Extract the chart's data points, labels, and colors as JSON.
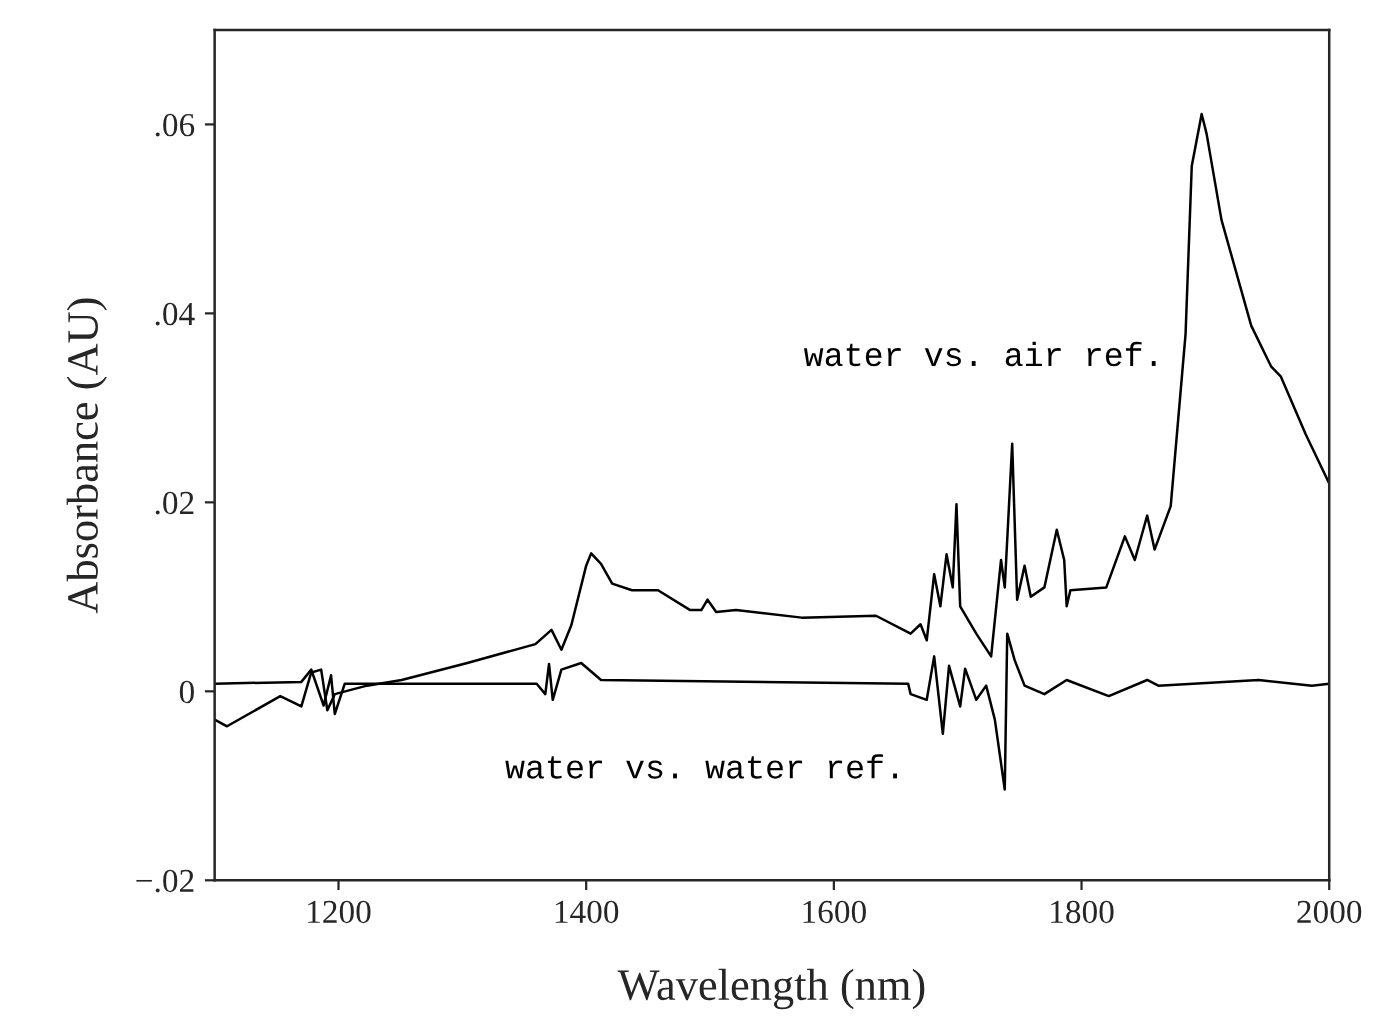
{
  "chart_data": {
    "type": "line",
    "xlabel": "Wavelength (nm)",
    "ylabel": "Absorbance (AU)",
    "xlim": [
      1100,
      2000
    ],
    "xticks": [
      1200,
      1400,
      1600,
      1800,
      2000
    ],
    "ylim": [
      -0.02,
      0.07
    ],
    "yticks": [
      {
        "value": -0.02,
        "label": "−.02"
      },
      {
        "value": 0,
        "label": "0"
      },
      {
        "value": 0.02,
        "label": ".02"
      },
      {
        "value": 0.04,
        "label": ".04"
      },
      {
        "value": 0.06,
        "label": ".06"
      }
    ],
    "grid": false,
    "legend": false,
    "marker": "none",
    "line_style": "solid",
    "series": [
      {
        "name": "water vs. air ref.",
        "color": "#000000",
        "x": [
          1100,
          1110,
          1153,
          1170,
          1178,
          1186,
          1191,
          1197,
          1223,
          1251,
          1304,
          1359,
          1372,
          1380,
          1388,
          1400,
          1404,
          1412,
          1421,
          1437,
          1458,
          1484,
          1493,
          1498,
          1505,
          1521,
          1574,
          1634,
          1662,
          1670,
          1675,
          1681,
          1686,
          1691,
          1696,
          1699,
          1702,
          1715,
          1727,
          1735,
          1738,
          1744,
          1748,
          1754,
          1759,
          1770,
          1780,
          1786,
          1788,
          1791,
          1820,
          1835,
          1843,
          1853,
          1859,
          1872,
          1884,
          1889,
          1897,
          1901,
          1913,
          1937,
          1953,
          1961,
          1981,
          2000
        ],
        "values": [
          -0.003,
          -0.0037,
          -0.0005,
          -0.0016,
          0.002,
          0.0023,
          -0.002,
          -0.0003,
          0.0006,
          0.0012,
          0.003,
          0.005,
          0.0065,
          0.0044,
          0.007,
          0.0133,
          0.0146,
          0.0135,
          0.0114,
          0.0107,
          0.0107,
          0.0086,
          0.0086,
          0.0097,
          0.0084,
          0.0086,
          0.0078,
          0.008,
          0.0061,
          0.0071,
          0.0054,
          0.0124,
          0.009,
          0.0145,
          0.011,
          0.0198,
          0.009,
          0.0061,
          0.0037,
          0.0139,
          0.011,
          0.0262,
          0.0097,
          0.0133,
          0.01,
          0.011,
          0.0171,
          0.0139,
          0.009,
          0.0107,
          0.011,
          0.0164,
          0.0139,
          0.0186,
          0.015,
          0.0196,
          0.0378,
          0.0556,
          0.0611,
          0.059,
          0.0499,
          0.0387,
          0.0344,
          0.0333,
          0.0272,
          0.022
        ]
      },
      {
        "name": "water vs. water ref.",
        "color": "#000000",
        "x": [
          1100,
          1170,
          1178,
          1188,
          1194,
          1197,
          1205,
          1360,
          1367,
          1370,
          1373,
          1380,
          1396,
          1412,
          1660,
          1662,
          1675,
          1681,
          1688,
          1693,
          1702,
          1706,
          1715,
          1723,
          1730,
          1738,
          1740,
          1746,
          1754,
          1770,
          1788,
          1822,
          1853,
          1862,
          1943,
          1986,
          2000
        ],
        "values": [
          0.0008,
          0.001,
          0.0023,
          -0.0015,
          0.0017,
          -0.0024,
          0.0008,
          0.0008,
          -0.0003,
          0.0029,
          -0.0009,
          0.0023,
          0.003,
          0.0012,
          0.0008,
          -0.0003,
          -0.0009,
          0.0037,
          -0.0045,
          0.0027,
          -0.0016,
          0.0024,
          -0.0009,
          0.0006,
          -0.003,
          -0.0104,
          0.0061,
          0.0033,
          0.0006,
          -0.0003,
          0.0012,
          -0.0005,
          0.0012,
          0.0006,
          0.0012,
          0.0006,
          0.0008
        ]
      }
    ]
  }
}
